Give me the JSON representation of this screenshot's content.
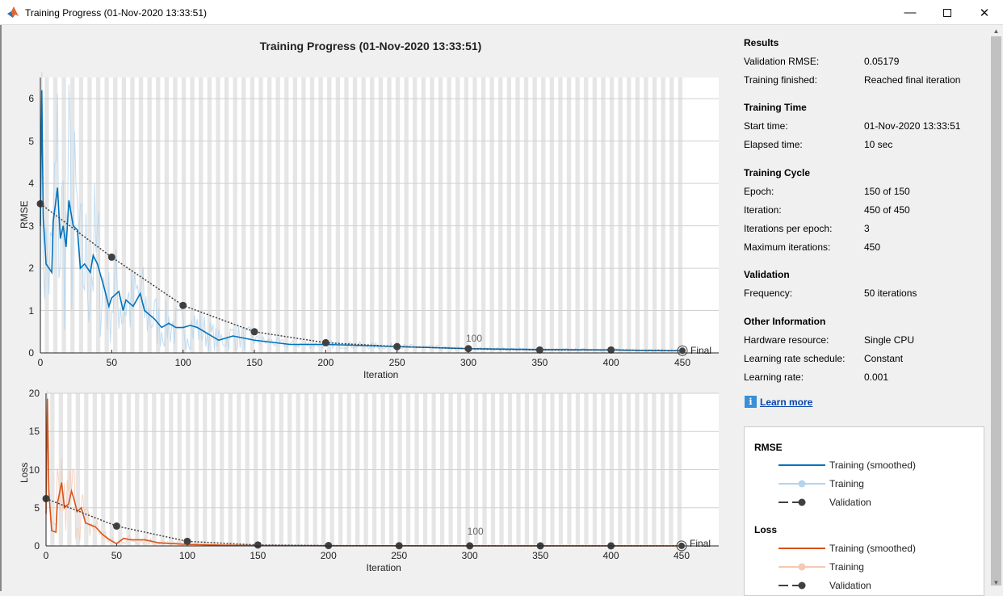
{
  "window": {
    "title": "Training Progress (01-Nov-2020 13:33:51)",
    "icon": "matlab-icon",
    "controls": [
      "minimize",
      "maximize",
      "close"
    ]
  },
  "chart_title": "Training Progress (01-Nov-2020 13:33:51)",
  "colors": {
    "rmse": "#0072bd",
    "rmse_raw": "#b3d4ee",
    "loss": "#d95319",
    "loss_raw": "#f5c8b2",
    "validation": "#404040",
    "stripe": "#e6e6e6"
  },
  "chart_data": [
    {
      "type": "line",
      "ylabel": "RMSE",
      "xlabel": "Iteration",
      "xlim": [
        0,
        450
      ],
      "ylim": [
        0,
        6.5
      ],
      "xticks": [
        0,
        50,
        100,
        150,
        200,
        250,
        300,
        350,
        400,
        450
      ],
      "yticks": [
        0,
        1,
        2,
        3,
        4,
        5,
        6
      ],
      "grid": "horizontal",
      "epoch_label": {
        "text": "100",
        "iteration": 300
      },
      "final_label": {
        "text": "Final",
        "iteration": 450
      },
      "series": [
        {
          "name": "Training (smoothed)",
          "x": [
            0,
            1,
            2,
            4,
            8,
            9,
            12,
            14,
            16,
            18,
            20,
            23,
            26,
            28,
            31,
            35,
            37,
            40,
            45,
            48,
            50,
            55,
            58,
            60,
            65,
            70,
            73,
            80,
            85,
            90,
            95,
            100,
            105,
            110,
            120,
            125,
            135,
            150,
            175,
            200,
            250,
            300,
            350,
            400,
            450
          ],
          "y": [
            3.0,
            6.2,
            3.2,
            2.1,
            1.9,
            3.1,
            3.9,
            2.7,
            3.0,
            2.5,
            3.6,
            3.0,
            2.9,
            2.0,
            2.1,
            1.9,
            2.3,
            2.1,
            1.5,
            1.1,
            1.3,
            1.45,
            1.0,
            1.25,
            1.1,
            1.4,
            1.0,
            0.8,
            0.6,
            0.7,
            0.6,
            0.6,
            0.65,
            0.6,
            0.4,
            0.3,
            0.4,
            0.3,
            0.2,
            0.2,
            0.15,
            0.1,
            0.08,
            0.07,
            0.05
          ]
        },
        {
          "name": "Validation",
          "x": [
            0,
            50,
            100,
            150,
            200,
            250,
            300,
            350,
            400,
            450
          ],
          "y": [
            3.52,
            2.26,
            1.12,
            0.5,
            0.24,
            0.15,
            0.1,
            0.07,
            0.07,
            0.05179
          ]
        }
      ]
    },
    {
      "type": "line",
      "ylabel": "Loss",
      "xlabel": "Iteration",
      "xlim": [
        0,
        450
      ],
      "ylim": [
        0,
        20
      ],
      "xticks": [
        0,
        50,
        100,
        150,
        200,
        250,
        300,
        350,
        400,
        450
      ],
      "yticks": [
        0,
        5,
        10,
        15,
        20
      ],
      "grid": "horizontal",
      "epoch_label": {
        "text": "100",
        "iteration": 300
      },
      "final_label": {
        "text": "Final",
        "iteration": 450
      },
      "series": [
        {
          "name": "Training (smoothed)",
          "x": [
            0,
            1,
            2,
            4,
            7,
            8,
            11,
            13,
            16,
            18,
            20,
            22,
            25,
            28,
            35,
            40,
            45,
            50,
            55,
            60,
            70,
            80,
            90,
            100,
            125,
            150,
            200,
            450
          ],
          "y": [
            4.2,
            19.3,
            7,
            2,
            1.8,
            5.5,
            8.3,
            5,
            5.5,
            7.2,
            6.0,
            4.5,
            5.0,
            3,
            2.5,
            1.5,
            0.8,
            0.3,
            1.0,
            0.8,
            0.8,
            0.4,
            0.3,
            0.2,
            0.1,
            0.05,
            0.02,
            0
          ]
        },
        {
          "name": "Validation",
          "x": [
            0,
            50,
            100,
            150,
            200,
            250,
            300,
            350,
            400,
            450
          ],
          "y": [
            6.2,
            2.6,
            0.6,
            0.12,
            0.05,
            0.02,
            0.01,
            0.01,
            0.01,
            0.01
          ]
        }
      ]
    }
  ],
  "info": {
    "results": {
      "heading": "Results",
      "rows": [
        [
          "Validation RMSE:",
          "0.05179"
        ],
        [
          "Training finished:",
          "Reached final iteration"
        ]
      ]
    },
    "time": {
      "heading": "Training Time",
      "rows": [
        [
          "Start time:",
          "01-Nov-2020 13:33:51"
        ],
        [
          "Elapsed time:",
          "10 sec"
        ]
      ]
    },
    "cycle": {
      "heading": "Training Cycle",
      "rows": [
        [
          "Epoch:",
          "150 of 150"
        ],
        [
          "Iteration:",
          "450 of 450"
        ],
        [
          "Iterations per epoch:",
          "3"
        ],
        [
          "Maximum iterations:",
          "450"
        ]
      ]
    },
    "validation": {
      "heading": "Validation",
      "rows": [
        [
          "Frequency:",
          "50 iterations"
        ]
      ]
    },
    "other": {
      "heading": "Other Information",
      "rows": [
        [
          "Hardware resource:",
          "Single CPU"
        ],
        [
          "Learning rate schedule:",
          "Constant"
        ],
        [
          "Learning rate:",
          "0.001"
        ]
      ]
    },
    "learn_more": "Learn more"
  },
  "legend": {
    "rmse": {
      "heading": "RMSE",
      "items": [
        "Training (smoothed)",
        "Training",
        "Validation"
      ]
    },
    "loss": {
      "heading": "Loss",
      "items": [
        "Training (smoothed)",
        "Training",
        "Validation"
      ]
    }
  }
}
